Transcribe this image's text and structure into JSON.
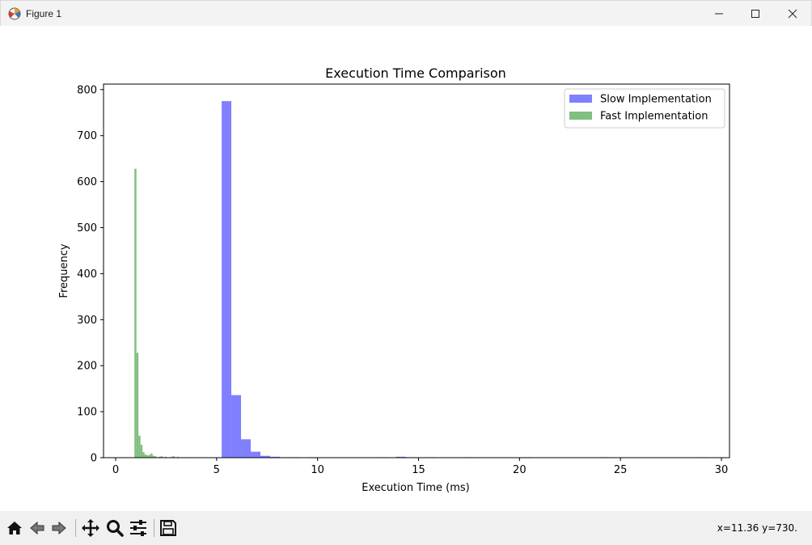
{
  "window": {
    "title": "Figure 1",
    "icons": {
      "app": "matplotlib-icon",
      "minimize": "minimize-icon",
      "maximize": "maximize-icon",
      "close": "close-icon"
    }
  },
  "toolbar": {
    "icons": [
      "home-icon",
      "back-arrow-icon",
      "forward-arrow-icon",
      "pan-icon",
      "zoom-icon",
      "configure-subplots-icon",
      "save-icon"
    ],
    "coordinates": "x=11.36 y=730."
  },
  "chart_data": {
    "type": "bar",
    "title": "Execution Time Comparison",
    "xlabel": "Execution Time (ms)",
    "ylabel": "Frequency",
    "xlim": [
      -0.6,
      30.4
    ],
    "ylim": [
      0,
      812
    ],
    "xticks": [
      0,
      5,
      10,
      15,
      20,
      25,
      30
    ],
    "yticks": [
      0,
      100,
      200,
      300,
      400,
      500,
      600,
      700,
      800
    ],
    "grid": false,
    "legend_position": "top-right",
    "series": [
      {
        "name": "Slow Implementation",
        "color": "#8080ff",
        "bin_width": 0.48,
        "bins": [
          {
            "x": 5.25,
            "count": 775
          },
          {
            "x": 5.73,
            "count": 136
          },
          {
            "x": 6.21,
            "count": 40
          },
          {
            "x": 6.69,
            "count": 13
          },
          {
            "x": 7.17,
            "count": 4
          },
          {
            "x": 7.65,
            "count": 2
          },
          {
            "x": 8.13,
            "count": 1
          },
          {
            "x": 8.61,
            "count": 1
          },
          {
            "x": 9.57,
            "count": 1
          },
          {
            "x": 12.93,
            "count": 1
          },
          {
            "x": 13.89,
            "count": 2
          },
          {
            "x": 14.37,
            "count": 1
          },
          {
            "x": 15.33,
            "count": 1
          },
          {
            "x": 17.25,
            "count": 1
          },
          {
            "x": 20.13,
            "count": 1
          },
          {
            "x": 23.97,
            "count": 1
          },
          {
            "x": 28.77,
            "count": 1
          }
        ]
      },
      {
        "name": "Fast Implementation",
        "color": "#80bf80",
        "bin_width": 0.1,
        "bins": [
          {
            "x": 0.93,
            "count": 628
          },
          {
            "x": 1.03,
            "count": 228
          },
          {
            "x": 1.13,
            "count": 48
          },
          {
            "x": 1.23,
            "count": 28
          },
          {
            "x": 1.33,
            "count": 12
          },
          {
            "x": 1.43,
            "count": 7
          },
          {
            "x": 1.53,
            "count": 5
          },
          {
            "x": 1.63,
            "count": 6
          },
          {
            "x": 1.73,
            "count": 9
          },
          {
            "x": 1.83,
            "count": 4
          },
          {
            "x": 1.93,
            "count": 3
          },
          {
            "x": 2.13,
            "count": 2
          },
          {
            "x": 2.23,
            "count": 3
          },
          {
            "x": 2.43,
            "count": 2
          },
          {
            "x": 2.73,
            "count": 2
          },
          {
            "x": 2.83,
            "count": 3
          },
          {
            "x": 3.03,
            "count": 2
          },
          {
            "x": 3.33,
            "count": 1
          },
          {
            "x": 3.63,
            "count": 1
          }
        ]
      }
    ]
  }
}
